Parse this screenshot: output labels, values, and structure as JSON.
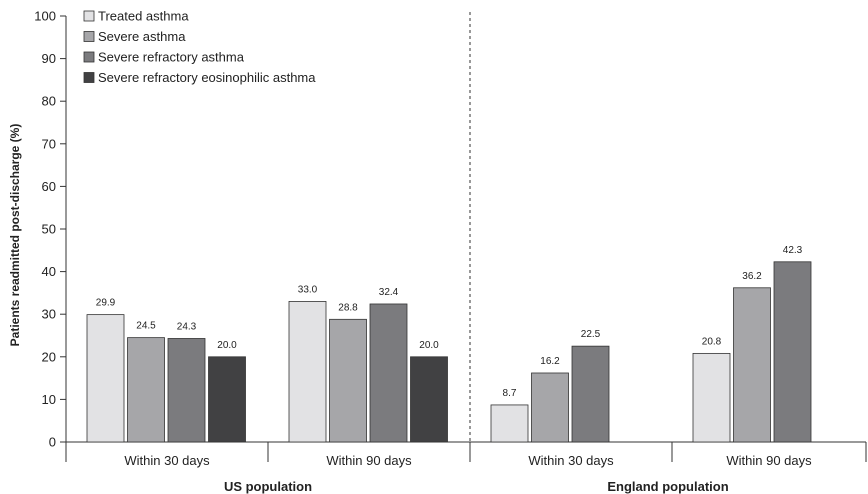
{
  "chart_data": {
    "type": "bar",
    "ylabel": "Patients readmitted post-discharge (%)",
    "ylim": [
      0,
      100
    ],
    "yticks": [
      0,
      10,
      20,
      30,
      40,
      50,
      60,
      70,
      80,
      90,
      100
    ],
    "grid": false,
    "legend_position": "top-left",
    "series": [
      {
        "name": "Treated asthma",
        "color": "#e2e2e4"
      },
      {
        "name": "Severe asthma",
        "color": "#a6a6a9"
      },
      {
        "name": "Severe refractory asthma",
        "color": "#7b7b7e"
      },
      {
        "name": "Severe refractory eosinophilic asthma",
        "color": "#414143"
      }
    ],
    "groups": [
      {
        "label": "US population",
        "categories": [
          {
            "label": "Within 30 days",
            "values": [
              29.9,
              24.5,
              24.3,
              20.0
            ],
            "labels": [
              "29.9",
              "24.5",
              "24.3",
              "20.0"
            ]
          },
          {
            "label": "Within 90 days",
            "values": [
              33.0,
              28.8,
              32.4,
              20.0
            ],
            "labels": [
              "33.0",
              "28.8",
              "32.4",
              "20.0"
            ]
          }
        ]
      },
      {
        "label": "England population",
        "categories": [
          {
            "label": "Within 30 days",
            "values": [
              8.7,
              16.2,
              22.5,
              null
            ],
            "labels": [
              "8.7",
              "16.2",
              "22.5",
              null
            ]
          },
          {
            "label": "Within 90 days",
            "values": [
              20.8,
              36.2,
              42.3,
              null
            ],
            "labels": [
              "20.8",
              "36.2",
              "42.3",
              null
            ]
          }
        ]
      }
    ]
  }
}
